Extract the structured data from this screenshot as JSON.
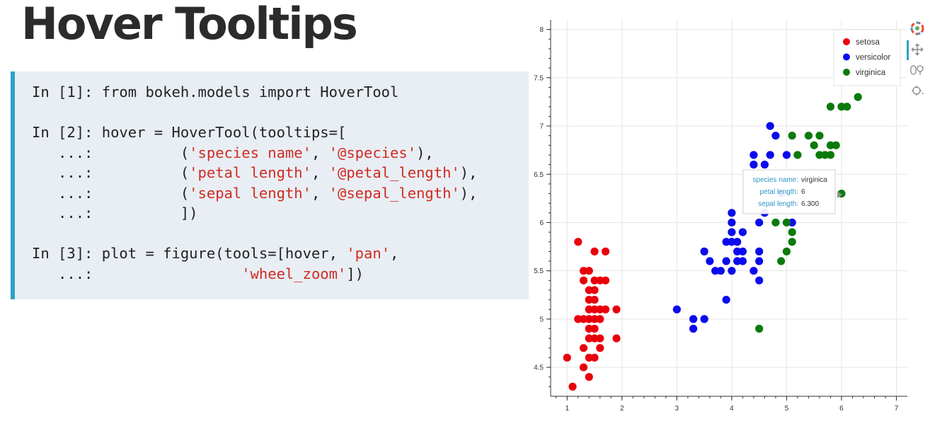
{
  "slide": {
    "title": "Hover Tooltips"
  },
  "code": {
    "lines": [
      [
        {
          "t": "In [1]: from bokeh.models import HoverTool"
        }
      ],
      [
        {
          "t": ""
        }
      ],
      [
        {
          "t": "In [2]: hover = HoverTool(tooltips=["
        }
      ],
      [
        {
          "t": "   ...:          ("
        },
        {
          "t": "'species name'",
          "s": 1
        },
        {
          "t": ", "
        },
        {
          "t": "'@species'",
          "s": 1
        },
        {
          "t": "),"
        }
      ],
      [
        {
          "t": "   ...:          ("
        },
        {
          "t": "'petal length'",
          "s": 1
        },
        {
          "t": ", "
        },
        {
          "t": "'@petal_length'",
          "s": 1
        },
        {
          "t": "),"
        }
      ],
      [
        {
          "t": "   ...:          ("
        },
        {
          "t": "'sepal length'",
          "s": 1
        },
        {
          "t": ", "
        },
        {
          "t": "'@sepal_length'",
          "s": 1
        },
        {
          "t": "),"
        }
      ],
      [
        {
          "t": "   ...:          ])"
        }
      ],
      [
        {
          "t": ""
        }
      ],
      [
        {
          "t": "In [3]: plot = figure(tools=[hover, "
        },
        {
          "t": "'pan'",
          "s": 1
        },
        {
          "t": ","
        }
      ],
      [
        {
          "t": "   ...:                 "
        },
        {
          "t": "'wheel_zoom'",
          "s": 1
        },
        {
          "t": "])"
        }
      ]
    ]
  },
  "tooltip": {
    "rows": [
      {
        "label": "species name:",
        "value": "virginica"
      },
      {
        "label": "petal length:",
        "value": "6"
      },
      {
        "label": "sepal length:",
        "value": "6.300"
      }
    ]
  },
  "toolbar": {
    "items": [
      {
        "icon": "bokeh-logo-icon"
      },
      {
        "icon": "pan-icon"
      },
      {
        "icon": "wheel-zoom-icon"
      },
      {
        "icon": "hover-icon"
      }
    ]
  },
  "colors": {
    "setosa": "#e8000b",
    "versicolor": "#0a0aee",
    "virginica": "#0b7a0b",
    "tooltip_label": "#2e94c8",
    "panel_border": "#31a0c8",
    "code_string": "#d12a22"
  },
  "chart_data": {
    "type": "scatter",
    "xlabel": "",
    "ylabel": "",
    "xlim": [
      0.7,
      7.2
    ],
    "ylim": [
      4.2,
      8.1
    ],
    "x_ticks": [
      "1",
      "2",
      "3",
      "4",
      "5",
      "6",
      "7"
    ],
    "y_ticks": [
      "4.5",
      "5",
      "5.5",
      "6",
      "6.5",
      "7",
      "7.5",
      "8"
    ],
    "grid": true,
    "legend_position": "top-right",
    "series": [
      {
        "name": "setosa",
        "color": "#e8000b",
        "points": [
          [
            1.0,
            4.6
          ],
          [
            1.1,
            4.3
          ],
          [
            1.2,
            5.8
          ],
          [
            1.2,
            5.0
          ],
          [
            1.3,
            5.5
          ],
          [
            1.3,
            5.0
          ],
          [
            1.3,
            4.7
          ],
          [
            1.3,
            4.5
          ],
          [
            1.3,
            5.4
          ],
          [
            1.4,
            5.1
          ],
          [
            1.4,
            4.9
          ],
          [
            1.4,
            5.0
          ],
          [
            1.4,
            4.6
          ],
          [
            1.4,
            5.5
          ],
          [
            1.4,
            5.2
          ],
          [
            1.4,
            4.4
          ],
          [
            1.4,
            4.8
          ],
          [
            1.4,
            5.3
          ],
          [
            1.5,
            5.4
          ],
          [
            1.5,
            5.7
          ],
          [
            1.5,
            5.0
          ],
          [
            1.5,
            5.1
          ],
          [
            1.5,
            4.9
          ],
          [
            1.5,
            5.2
          ],
          [
            1.5,
            4.6
          ],
          [
            1.5,
            4.8
          ],
          [
            1.5,
            5.3
          ],
          [
            1.6,
            4.7
          ],
          [
            1.6,
            5.0
          ],
          [
            1.6,
            5.1
          ],
          [
            1.6,
            4.8
          ],
          [
            1.6,
            5.4
          ],
          [
            1.7,
            5.4
          ],
          [
            1.7,
            5.7
          ],
          [
            1.7,
            5.1
          ],
          [
            1.9,
            4.8
          ],
          [
            1.9,
            5.1
          ]
        ]
      },
      {
        "name": "versicolor",
        "color": "#0a0aee",
        "points": [
          [
            3.0,
            5.1
          ],
          [
            3.3,
            4.9
          ],
          [
            3.3,
            5.0
          ],
          [
            3.5,
            5.7
          ],
          [
            3.5,
            5.0
          ],
          [
            3.6,
            5.6
          ],
          [
            3.7,
            5.5
          ],
          [
            3.8,
            5.5
          ],
          [
            3.9,
            5.8
          ],
          [
            3.9,
            5.6
          ],
          [
            3.9,
            5.2
          ],
          [
            4.0,
            5.8
          ],
          [
            4.0,
            5.5
          ],
          [
            4.0,
            6.0
          ],
          [
            4.0,
            6.1
          ],
          [
            4.0,
            5.9
          ],
          [
            4.1,
            5.6
          ],
          [
            4.1,
            5.8
          ],
          [
            4.1,
            5.7
          ],
          [
            4.2,
            5.7
          ],
          [
            4.2,
            5.6
          ],
          [
            4.2,
            5.9
          ],
          [
            4.4,
            6.6
          ],
          [
            4.4,
            6.7
          ],
          [
            4.4,
            5.5
          ],
          [
            4.5,
            6.0
          ],
          [
            4.5,
            5.4
          ],
          [
            4.5,
            5.7
          ],
          [
            4.5,
            5.6
          ],
          [
            4.6,
            6.6
          ],
          [
            4.6,
            6.1
          ],
          [
            4.7,
            7.0
          ],
          [
            4.7,
            6.7
          ],
          [
            4.8,
            6.9
          ],
          [
            4.9,
            6.3
          ],
          [
            5.0,
            6.7
          ],
          [
            5.1,
            6.0
          ]
        ]
      },
      {
        "name": "virginica",
        "color": "#0b7a0b",
        "points": [
          [
            4.5,
            4.9
          ],
          [
            4.8,
            6.0
          ],
          [
            4.9,
            5.6
          ],
          [
            5.0,
            5.7
          ],
          [
            5.0,
            6.0
          ],
          [
            5.1,
            5.8
          ],
          [
            5.1,
            5.9
          ],
          [
            5.1,
            6.9
          ],
          [
            5.2,
            6.7
          ],
          [
            5.4,
            6.9
          ],
          [
            5.5,
            6.8
          ],
          [
            5.6,
            6.7
          ],
          [
            5.6,
            6.9
          ],
          [
            5.7,
            6.7
          ],
          [
            5.8,
            6.8
          ],
          [
            5.8,
            6.7
          ],
          [
            5.8,
            7.2
          ],
          [
            5.9,
            6.8
          ],
          [
            6.0,
            6.3
          ],
          [
            6.0,
            7.2
          ],
          [
            6.1,
            7.2
          ],
          [
            6.1,
            7.7
          ],
          [
            6.3,
            7.3
          ],
          [
            6.7,
            7.7
          ],
          [
            6.9,
            7.7
          ]
        ]
      }
    ]
  }
}
